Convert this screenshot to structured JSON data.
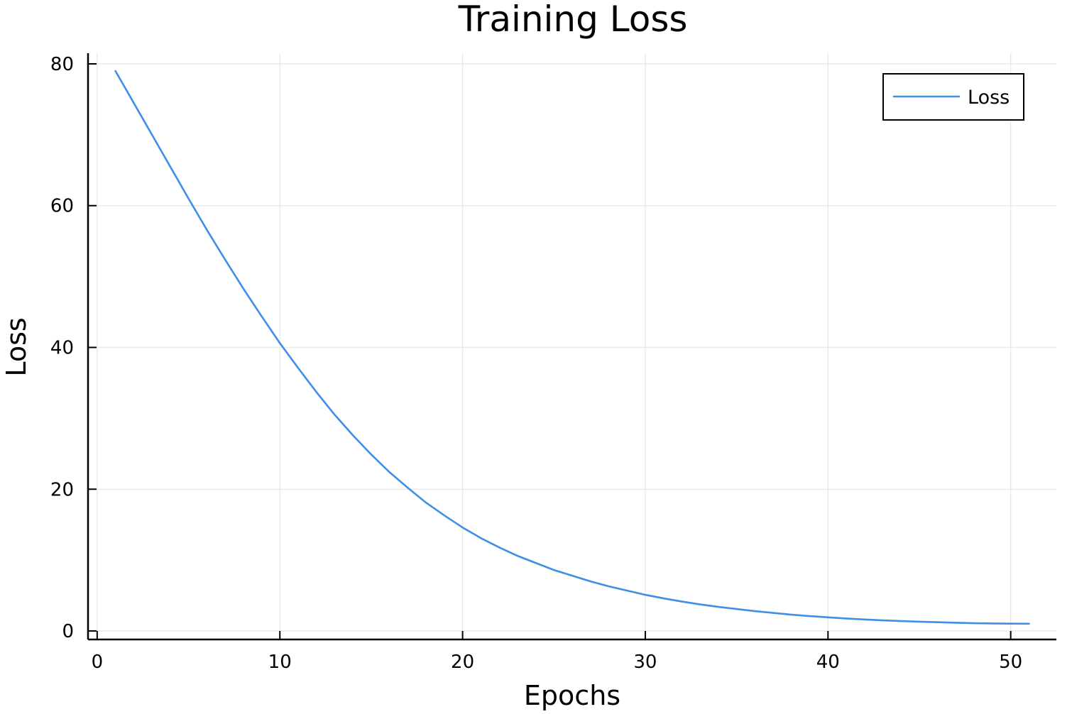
{
  "chart_data": {
    "type": "line",
    "title": "Training Loss",
    "xlabel": "Epochs",
    "ylabel": "Loss",
    "xlim": [
      -0.5,
      52.5
    ],
    "ylim": [
      -1.2,
      81.5
    ],
    "xticks": [
      0,
      10,
      20,
      30,
      40,
      50
    ],
    "yticks": [
      0,
      20,
      40,
      60,
      80
    ],
    "grid": true,
    "legend_position": "top-right",
    "series": [
      {
        "name": "Loss",
        "color": "#3f8fe6",
        "x": [
          1,
          2,
          3,
          4,
          5,
          6,
          7,
          8,
          9,
          10,
          11,
          12,
          13,
          14,
          15,
          16,
          17,
          18,
          19,
          20,
          21,
          22,
          23,
          24,
          25,
          26,
          27,
          28,
          29,
          30,
          31,
          32,
          33,
          34,
          35,
          36,
          37,
          38,
          39,
          40,
          41,
          42,
          43,
          44,
          45,
          46,
          47,
          48,
          49,
          50,
          51
        ],
        "y": [
          79.0,
          74.5,
          70.0,
          65.5,
          61.0,
          56.6,
          52.4,
          48.3,
          44.4,
          40.6,
          37.1,
          33.7,
          30.5,
          27.6,
          24.9,
          22.4,
          20.2,
          18.1,
          16.3,
          14.6,
          13.1,
          11.8,
          10.6,
          9.6,
          8.6,
          7.8,
          7.0,
          6.3,
          5.7,
          5.1,
          4.6,
          4.15,
          3.75,
          3.4,
          3.1,
          2.8,
          2.55,
          2.3,
          2.1,
          1.92,
          1.76,
          1.62,
          1.5,
          1.4,
          1.31,
          1.23,
          1.16,
          1.1,
          1.06,
          1.03,
          1.02
        ]
      }
    ]
  }
}
